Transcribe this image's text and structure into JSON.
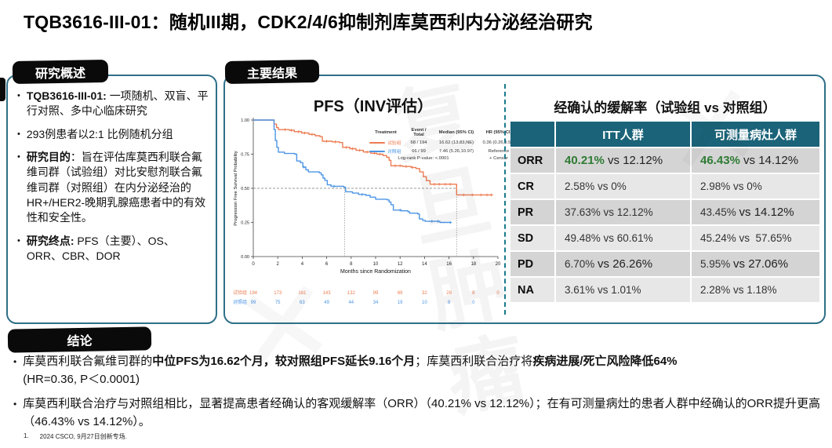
{
  "slide": {
    "title": "TQB3616-III-01：随机III期，CDK2/4/6抑制剂库莫西利内分泌经治研究",
    "watermark": "复旦肿瘤",
    "watermark_mark": "✕",
    "footnote_number": "1.",
    "footnote_text": "2024 CSCO, 9月27日创新专场."
  },
  "overview": {
    "header": "研究概述",
    "bullets": [
      [
        {
          "t": "TQB3616-III-01: ",
          "b": true
        },
        {
          "t": "一项随机、双盲、平行对照、多中心临床研究"
        }
      ],
      [
        {
          "t": "293例患者以2:1 比例随机分组"
        }
      ],
      [
        {
          "t": "研究目的",
          "b": true
        },
        {
          "t": "：旨在评估库莫西利联合氟维司群（试验组）对比安慰剂联合氟维司群（对照组）在内分泌经治的 HR+/HER2-晚期乳腺癌患者中的有效性和安全性。"
        }
      ],
      [
        {
          "t": "研究终点:",
          "b": true
        },
        {
          "t": " PFS（主要）、OS、ORR、CBR、DOR"
        }
      ]
    ]
  },
  "results": {
    "header": "主要结果",
    "pfs_title": "PFS（INV评估）"
  },
  "chart_data": {
    "type": "line",
    "subtype": "kaplan-meier",
    "title": "PFS（INV评估）",
    "xlabel": "Months since Randomization",
    "ylabel": "Progression Free Survival Probability",
    "xlim": [
      0,
      20
    ],
    "ylim": [
      0,
      1
    ],
    "xticks": [
      0,
      2,
      4,
      6,
      8,
      10,
      12,
      14,
      16,
      18,
      20
    ],
    "yticks": [
      "0.00",
      "0.25",
      "0.50",
      "0.75",
      "1.00"
    ],
    "grid": false,
    "legend": {
      "position": "upper-right-inside",
      "columns": [
        "Treatment",
        "Event / Total",
        "Median (95% CI)",
        "HR (95% CI)"
      ],
      "rows": [
        {
          "name": "试验组",
          "color": "#ED7C52",
          "event_total": "68 / 194",
          "median": "16.62 (13.83,NE)",
          "hr": "0.36 (0.26,0.51)"
        },
        {
          "name": "对照组",
          "color": "#4C95E5",
          "event_total": "66 / 99",
          "median": "7.46 (5.26,10.97)",
          "hr": "Reference"
        }
      ],
      "pvalue": "Log-rank P-value: <.0001",
      "censor_note": "+ Censor"
    },
    "reference": {
      "y": 0.5,
      "x_medians": [
        {
          "x": 7.46,
          "top": 0.51
        },
        {
          "x": 16.62,
          "top": 0.53
        }
      ]
    },
    "series": [
      {
        "name": "试验组",
        "color": "#ED7C52",
        "points": [
          [
            0,
            1
          ],
          [
            1.6,
            1
          ],
          [
            1.7,
            0.97
          ],
          [
            1.9,
            0.945
          ],
          [
            2.05,
            0.93
          ],
          [
            2.95,
            0.925
          ],
          [
            3.35,
            0.915
          ],
          [
            3.95,
            0.905
          ],
          [
            4.55,
            0.895
          ],
          [
            5.05,
            0.885
          ],
          [
            5.45,
            0.878
          ],
          [
            5.65,
            0.845
          ],
          [
            6.45,
            0.84
          ],
          [
            7.05,
            0.835
          ],
          [
            7.3,
            0.8
          ],
          [
            7.9,
            0.79
          ],
          [
            8.4,
            0.778
          ],
          [
            9.0,
            0.766
          ],
          [
            9.6,
            0.757
          ],
          [
            10.1,
            0.75
          ],
          [
            10.6,
            0.74
          ],
          [
            10.9,
            0.727
          ],
          [
            11.1,
            0.705
          ],
          [
            11.25,
            0.665
          ],
          [
            12.2,
            0.66
          ],
          [
            12.9,
            0.653
          ],
          [
            13.3,
            0.645
          ],
          [
            13.6,
            0.62
          ],
          [
            13.9,
            0.585
          ],
          [
            14.15,
            0.556
          ],
          [
            14.45,
            0.53
          ],
          [
            16.55,
            0.53
          ],
          [
            16.62,
            0.452
          ],
          [
            19.55,
            0.448
          ]
        ],
        "censors": [
          2.6,
          3.1,
          3.7,
          4.2,
          4.8,
          6.0,
          6.7,
          7.6,
          8.1,
          8.7,
          9.3,
          9.9,
          10.35,
          11.6,
          12.0,
          12.5,
          13.0,
          14.8,
          15.2,
          15.7,
          16.1,
          17.2,
          17.9,
          18.6,
          19.1,
          19.45
        ]
      },
      {
        "name": "对照组",
        "color": "#4C95E5",
        "points": [
          [
            0,
            1
          ],
          [
            1.55,
            1
          ],
          [
            1.7,
            0.93
          ],
          [
            1.8,
            0.85
          ],
          [
            1.92,
            0.8
          ],
          [
            2.05,
            0.765
          ],
          [
            2.55,
            0.755
          ],
          [
            3.4,
            0.75
          ],
          [
            3.55,
            0.7
          ],
          [
            3.85,
            0.688
          ],
          [
            4.05,
            0.655
          ],
          [
            4.3,
            0.635
          ],
          [
            4.5,
            0.62
          ],
          [
            5.4,
            0.613
          ],
          [
            5.55,
            0.598
          ],
          [
            5.7,
            0.575
          ],
          [
            5.85,
            0.558
          ],
          [
            6.05,
            0.525
          ],
          [
            6.35,
            0.515
          ],
          [
            7.4,
            0.508
          ],
          [
            7.55,
            0.475
          ],
          [
            8.1,
            0.465
          ],
          [
            8.6,
            0.455
          ],
          [
            9.2,
            0.448
          ],
          [
            9.55,
            0.435
          ],
          [
            10.0,
            0.42
          ],
          [
            10.95,
            0.415
          ],
          [
            11.1,
            0.4
          ],
          [
            11.25,
            0.38
          ],
          [
            11.45,
            0.34
          ],
          [
            12.1,
            0.335
          ],
          [
            12.65,
            0.328
          ],
          [
            12.78,
            0.318
          ],
          [
            13.45,
            0.312
          ],
          [
            13.58,
            0.275
          ],
          [
            13.85,
            0.265
          ],
          [
            14.05,
            0.258
          ],
          [
            15.25,
            0.25
          ],
          [
            16.15,
            0.245
          ]
        ],
        "censors": [
          4.15,
          6.6,
          8.9,
          12.0,
          14.6,
          15.1,
          16.1
        ]
      }
    ],
    "at_risk": {
      "rows": [
        {
          "name": "试验组",
          "color": "#ED7C52",
          "values": [
            194,
            173,
            161,
            143,
            132,
            99,
            69,
            32,
            28,
            8,
            0
          ]
        },
        {
          "name": "对照组",
          "color": "#4C95E5",
          "values": [
            99,
            75,
            63,
            49,
            44,
            34,
            19,
            10,
            8,
            0
          ]
        }
      ]
    }
  },
  "response_table": {
    "title": "经确认的缓解率（试验组 vs 对照组）",
    "header_bg": "#1A6379",
    "green": "#2E7B33",
    "columns": [
      "",
      "ITT人群",
      "可测量病灶人群"
    ],
    "rows": [
      {
        "label": "ORR",
        "em": true,
        "itt": [
          {
            "t": "40.21%",
            "s": "green"
          },
          {
            "t": " vs 12.12%"
          }
        ],
        "meas": [
          {
            "t": "46.43%",
            "s": "green"
          },
          {
            "t": " vs 14.12%"
          }
        ]
      },
      {
        "label": "CR",
        "itt": [
          {
            "t": "2.58% vs 0%"
          }
        ],
        "meas": [
          {
            "t": "2.98% vs 0%"
          }
        ]
      },
      {
        "label": "PR",
        "itt": [
          {
            "t": "37.63% vs 12.12%"
          }
        ],
        "meas": [
          {
            "t": "43.45% "
          },
          {
            "t": "vs 14.12%",
            "s": "big"
          }
        ]
      },
      {
        "label": "SD",
        "itt": [
          {
            "t": "49.48% vs 60.61%"
          }
        ],
        "meas": [
          {
            "t": "45.24% vs  57.65%"
          }
        ]
      },
      {
        "label": "PD",
        "itt": [
          {
            "t": "6.70% "
          },
          {
            "t": "vs 26.26%",
            "s": "big"
          }
        ],
        "meas": [
          {
            "t": "5.95% "
          },
          {
            "t": "vs 27.06%",
            "s": "big"
          }
        ]
      },
      {
        "label": "NA",
        "itt": [
          {
            "t": "3.61% vs 1.01%"
          }
        ],
        "meas": [
          {
            "t": "2.28% vs 1.18%"
          }
        ]
      }
    ]
  },
  "conclusion": {
    "header": "结论",
    "bullets": [
      [
        {
          "t": "库莫西利联合氟维司群的"
        },
        {
          "t": "中位PFS为16.62个月，较对照组PFS延长9.16个月",
          "b": true
        },
        {
          "t": "；库莫西利联合治疗将"
        },
        {
          "t": "疾病进展/死亡风险降低64%",
          "b": true
        },
        {
          "t": "(HR=0.36, P＜0.0001)",
          "br": true
        }
      ],
      [
        {
          "t": "库莫西利联合治疗与对照组相比，显著提高患者经确认的客观缓解率（ORR）（40.21% vs 12.12%）；在有可测量病灶的患者人群中经确认的ORR提升更高（46.43% vs 14.12%）。"
        }
      ]
    ]
  }
}
